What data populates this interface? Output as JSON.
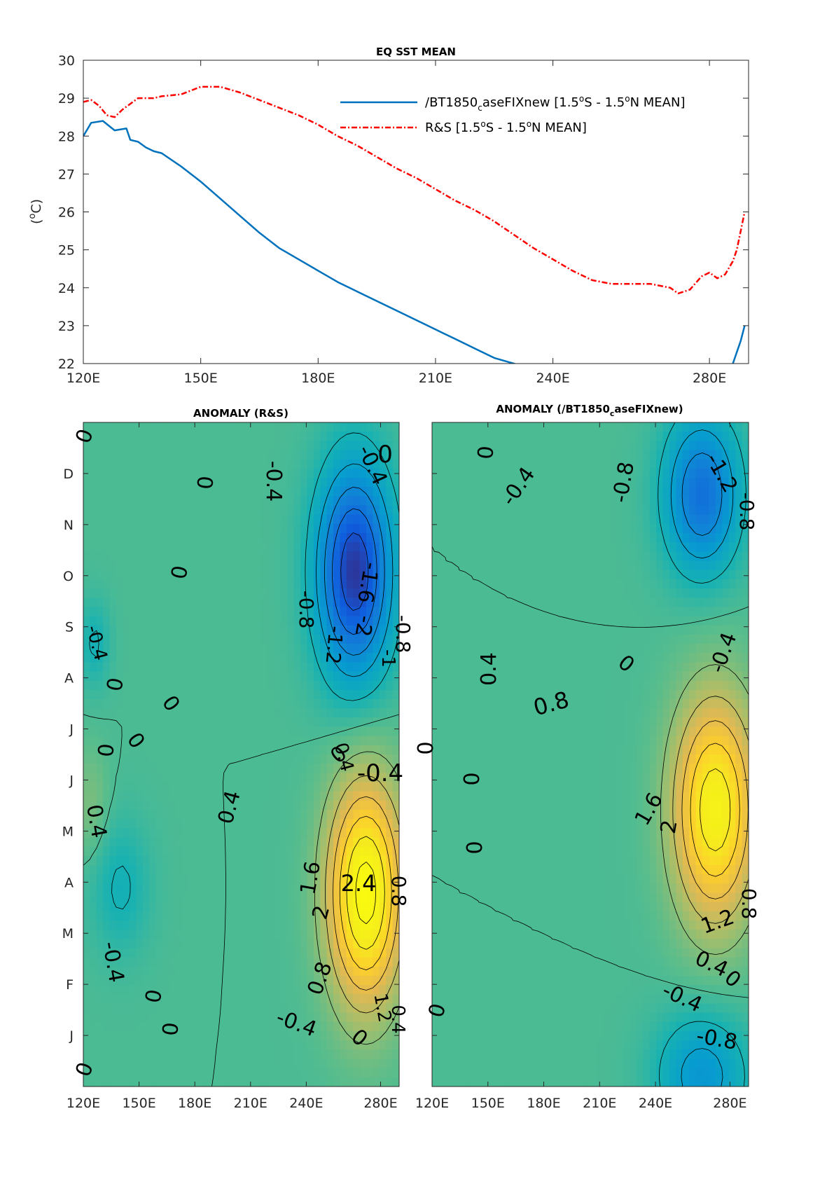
{
  "chart_data": [
    {
      "type": "line",
      "title": "EQ SST MEAN",
      "ylabel": "(°C)",
      "xlabel": "",
      "xlim": [
        120,
        290
      ],
      "ylim": [
        22,
        30
      ],
      "xticks": [
        120,
        150,
        180,
        210,
        240,
        280
      ],
      "xtick_labels": [
        "120E",
        "150E",
        "180E",
        "210E",
        "240E",
        "280E"
      ],
      "yticks": [
        22,
        23,
        24,
        25,
        26,
        27,
        28,
        29,
        30
      ],
      "ytick_labels": [
        "22",
        "23",
        "24",
        "25",
        "26",
        "27",
        "28",
        "29",
        "30"
      ],
      "legend_position": "top-right",
      "series": [
        {
          "name": "/BT1850_caseFIXnew [1.5°S - 1.5°N MEAN]",
          "legend_main": "/BT1850",
          "legend_sub": "c",
          "legend_rest": "aseFIXnew [1.5",
          "legend_o1": "o",
          "legend_mid": "S - 1.5",
          "legend_o2": "o",
          "legend_end": "N MEAN]",
          "color": "#0072BD",
          "style": "solid",
          "x": [
            120,
            122,
            125,
            128,
            131,
            132,
            134,
            136,
            138,
            140,
            145,
            150,
            155,
            160,
            165,
            170,
            175,
            180,
            185,
            190,
            195,
            200,
            205,
            210,
            215,
            220,
            225,
            230,
            233,
            234,
            285,
            286,
            288,
            289
          ],
          "y": [
            28.0,
            28.35,
            28.4,
            28.15,
            28.2,
            27.9,
            27.85,
            27.7,
            27.6,
            27.55,
            27.2,
            26.8,
            26.35,
            25.9,
            25.45,
            25.05,
            24.75,
            24.45,
            24.15,
            23.9,
            23.65,
            23.4,
            23.15,
            22.9,
            22.65,
            22.4,
            22.15,
            22.0,
            21.9,
            21.85,
            21.8,
            22.0,
            22.6,
            23.0
          ]
        },
        {
          "name": "R&S [1.5°S - 1.5°N MEAN]",
          "legend_main": "R&S [1.5",
          "legend_o1": "o",
          "legend_mid": "S - 1.5",
          "legend_o2": "o",
          "legend_end": "N MEAN]",
          "color": "#FF0000",
          "style": "dashdot",
          "x": [
            120,
            122,
            124,
            126,
            128,
            130,
            132,
            134,
            136,
            138,
            140,
            145,
            150,
            155,
            160,
            165,
            170,
            175,
            180,
            185,
            190,
            195,
            200,
            205,
            210,
            215,
            220,
            225,
            230,
            235,
            240,
            245,
            250,
            255,
            260,
            265,
            270,
            272,
            275,
            278,
            280,
            282,
            284,
            286,
            287,
            288,
            289
          ],
          "y": [
            28.9,
            28.95,
            28.8,
            28.55,
            28.5,
            28.7,
            28.85,
            29.0,
            29.0,
            29.0,
            29.05,
            29.1,
            29.3,
            29.3,
            29.15,
            28.95,
            28.75,
            28.55,
            28.3,
            28.0,
            27.75,
            27.45,
            27.15,
            26.9,
            26.6,
            26.3,
            26.05,
            25.75,
            25.4,
            25.05,
            24.75,
            24.45,
            24.2,
            24.1,
            24.1,
            24.1,
            24.0,
            23.85,
            23.95,
            24.3,
            24.4,
            24.25,
            24.35,
            24.7,
            25.0,
            25.5,
            26.0
          ]
        }
      ]
    },
    {
      "type": "heatmap",
      "title": "ANOMALY (R&S)",
      "xlim": [
        120,
        290
      ],
      "xticks": [
        120,
        150,
        180,
        210,
        240,
        280
      ],
      "xtick_labels": [
        "120E",
        "150E",
        "180E",
        "210E",
        "240E",
        "280E"
      ],
      "yticks": [
        "J",
        "F",
        "M",
        "A",
        "M",
        "J",
        "J",
        "A",
        "S",
        "O",
        "N",
        "D"
      ],
      "colormap": "parula",
      "contour_interval": 0.4,
      "extrema": [
        {
          "name": "warm-core",
          "lon": 272,
          "month": 3.5,
          "value": 2.6,
          "width_lon": 20,
          "width_month": 2.0
        },
        {
          "name": "cold-core",
          "lon": 266,
          "month": 9.3,
          "value": -2.3,
          "width_lon": 20,
          "width_month": 1.9
        },
        {
          "name": "west-cold-aug",
          "lon": 126,
          "month": 8.0,
          "value": -0.45,
          "width_lon": 8,
          "width_month": 0.8
        },
        {
          "name": "west-cold-mar",
          "lon": 140,
          "month": 3.6,
          "value": -0.45,
          "width_lon": 16,
          "width_month": 1.2
        },
        {
          "name": "west-warm-may",
          "lon": 124,
          "month": 5.1,
          "value": 0.35,
          "width_lon": 9,
          "width_month": 1.0
        }
      ],
      "contour_labels": [
        "0",
        "0",
        "-0.4",
        "-0.4",
        "0",
        "0",
        "-1.6",
        "-0.8",
        "-1.2",
        "-2",
        "-0.8",
        "-1",
        "-0.4",
        "0",
        "0",
        "0",
        "0",
        "0.4",
        "0.4",
        "0.4",
        "-0.4",
        "-0.4",
        "0",
        "1.6",
        "2.4",
        "2",
        "0.8",
        "0.8",
        "1.2",
        "0.4",
        "-0.4",
        "0",
        "0",
        "0",
        "0"
      ]
    },
    {
      "type": "heatmap",
      "title": "ANOMALY (/BT1850_caseFIXnew)",
      "title_main": "ANOMALY (/BT1850",
      "title_sub": "c",
      "title_rest": "aseFIXnew)",
      "xlim": [
        120,
        290
      ],
      "xticks": [
        120,
        150,
        180,
        210,
        240,
        280
      ],
      "xtick_labels": [
        "120E",
        "150E",
        "180E",
        "210E",
        "240E",
        "280E"
      ],
      "colormap": "parula",
      "contour_interval": 0.4,
      "extrema": [
        {
          "name": "warm-core",
          "lon": 272,
          "month": 5.0,
          "value": 2.3,
          "width_lon": 22,
          "width_month": 2.0
        },
        {
          "name": "cold-core",
          "lon": 265,
          "month": 10.7,
          "value": -1.6,
          "width_lon": 20,
          "width_month": 1.4
        },
        {
          "name": "cold-jan",
          "lon": 265,
          "month": 0.2,
          "value": -1.0,
          "width_lon": 24,
          "width_month": 1.1
        }
      ],
      "contour_labels": [
        "0",
        "-0.4",
        "-0.8",
        "-1.2",
        "-0.8",
        "0.4",
        "0",
        "-0.4",
        "0.8",
        "0",
        "0",
        "0",
        "1.6",
        "2",
        "1.2",
        "0.8",
        "0.4",
        "0",
        "-0.4",
        "0",
        "-0.8"
      ]
    }
  ]
}
